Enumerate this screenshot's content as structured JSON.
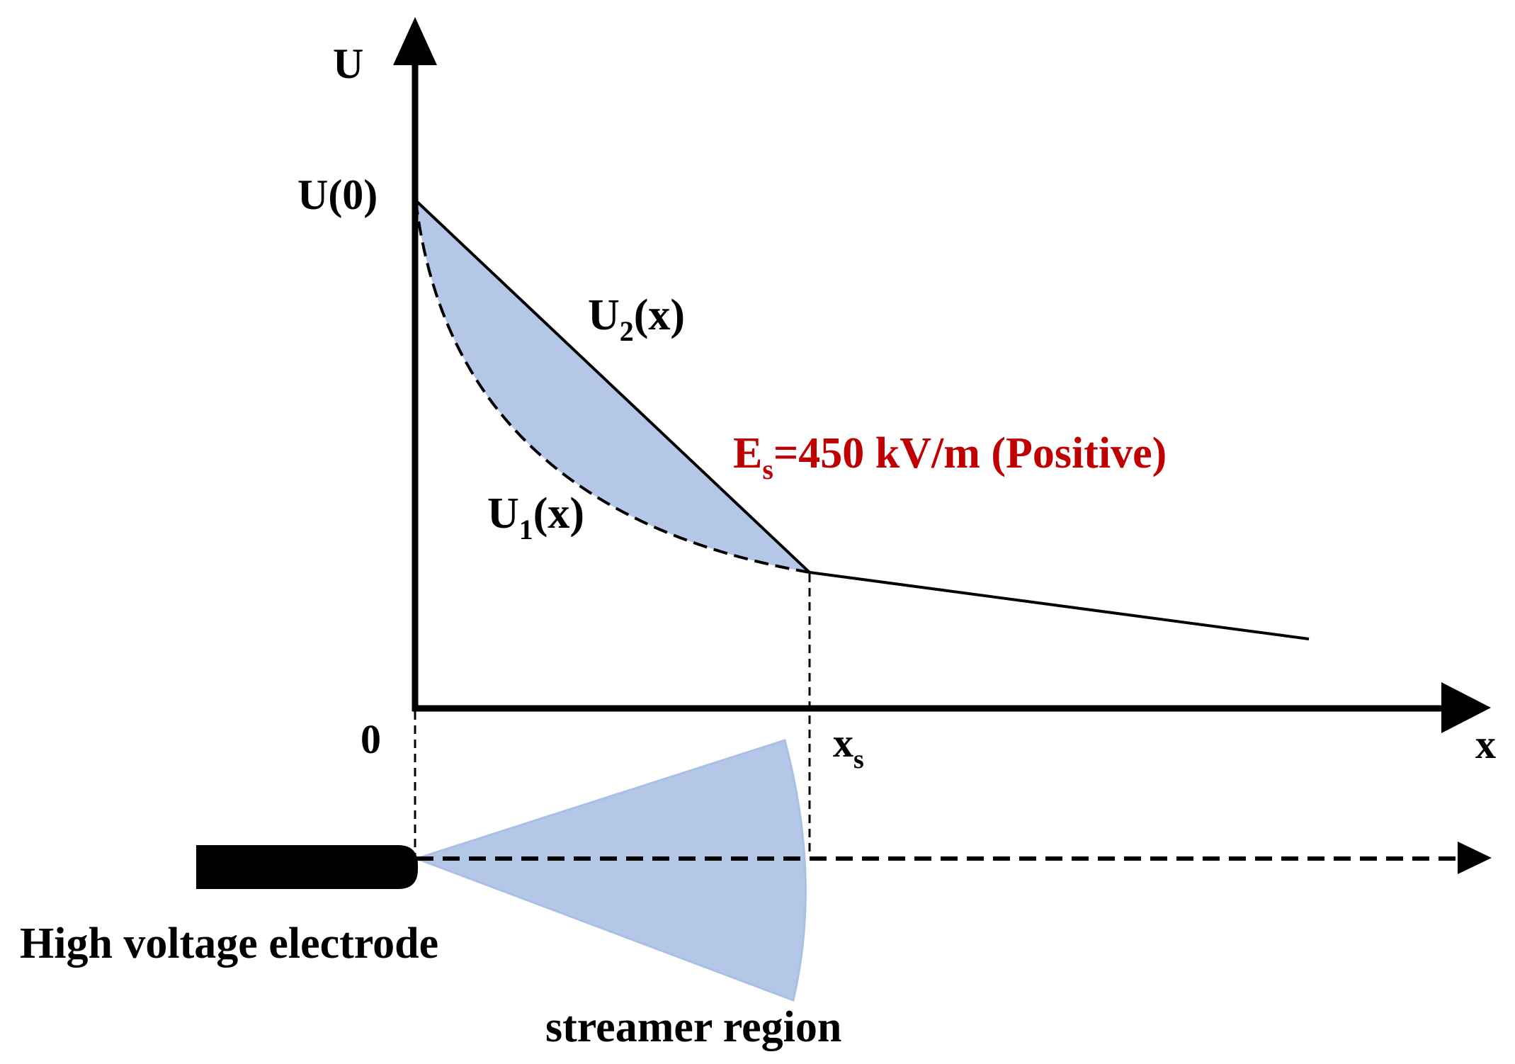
{
  "axes": {
    "y_label": "U",
    "x_label": "x",
    "origin_label": "0",
    "u0_label": "U(0)",
    "xs_label_main": "x",
    "xs_label_sub": "s"
  },
  "curves": {
    "u2_main": "U",
    "u2_sub": "2",
    "u2_tail": "(x)",
    "u1_main": "U",
    "u1_sub": "1",
    "u1_tail": "(x)"
  },
  "annotation": {
    "es_main": "E",
    "es_sub": "s",
    "es_rest": "=450 kV/m  (Positive)",
    "color": "#c00000"
  },
  "bottom": {
    "electrode_label": "High voltage electrode",
    "streamer_label": "streamer region"
  },
  "colors": {
    "fill": "#b4c7e7",
    "line": "#000000"
  }
}
